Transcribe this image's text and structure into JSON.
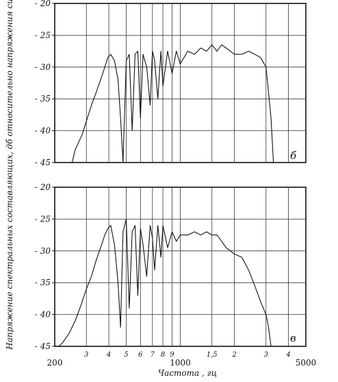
{
  "chart_data": {
    "type": "line",
    "ylabel": "Напряжение спектральных составляющих, дб относительно напряжения сигнала",
    "xlabel": "Частота , гц",
    "x_scale": "log",
    "xlim": [
      200,
      5000
    ],
    "x_tick_labels_major": [
      "200",
      "1000",
      "5000"
    ],
    "x_tick_labels_minor": [
      "3",
      "4",
      "5",
      "6",
      "7",
      "8",
      "9",
      "1,5",
      "2",
      "3",
      "4"
    ],
    "x_tick_values_minor": [
      300,
      400,
      500,
      600,
      700,
      800,
      900,
      1500,
      2000,
      3000,
      4000
    ],
    "y_tick_labels": [
      "- 20",
      "- 25",
      "- 30",
      "- 35",
      "- 40",
      "- 45"
    ],
    "panels": [
      {
        "label": "б",
        "ylim": [
          -45,
          -20
        ],
        "series": [
          {
            "x": [
              250,
              260,
              270,
              285,
              300,
              320,
              340,
              360,
              380,
              395,
              410,
              430,
              450,
              465,
              480,
              500,
              520,
              540,
              560,
              580,
              600,
              620,
              650,
              680,
              700,
              720,
              750,
              780,
              800,
              850,
              900,
              950,
              1000,
              1100,
              1200,
              1300,
              1400,
              1500,
              1600,
              1700,
              1800,
              1900,
              2000,
              2200,
              2400,
              2600,
              2800,
              3000,
              3100,
              3200,
              3300
            ],
            "y": [
              -45,
              -43,
              -42,
              -40.5,
              -38.5,
              -36,
              -34,
              -32,
              -30,
              -28.5,
              -28,
              -29,
              -32,
              -38,
              -45,
              -29,
              -28,
              -40,
              -28,
              -27.5,
              -38,
              -28,
              -30,
              -36,
              -27.5,
              -29,
              -35,
              -27.5,
              -33,
              -27.5,
              -31,
              -27.5,
              -29.5,
              -27.5,
              -28,
              -27,
              -27.5,
              -26.5,
              -27.5,
              -26.5,
              -27,
              -27.5,
              -28,
              -28,
              -27.5,
              -28,
              -28.5,
              -30,
              -34,
              -38,
              -45
            ]
          }
        ]
      },
      {
        "label": "в",
        "ylim": [
          -45,
          -20
        ],
        "series": [
          {
            "x": [
              210,
              220,
              240,
              260,
              280,
              300,
              320,
              340,
              360,
              380,
              395,
              410,
              430,
              450,
              465,
              480,
              500,
              520,
              540,
              560,
              580,
              600,
              620,
              650,
              680,
              700,
              720,
              750,
              780,
              800,
              850,
              900,
              950,
              1000,
              1100,
              1200,
              1300,
              1400,
              1500,
              1600,
              1700,
              1800,
              1900,
              2000,
              2200,
              2400,
              2600,
              2800,
              3000,
              3100,
              3200,
              3300
            ],
            "y": [
              -45,
              -44.5,
              -43,
              -41,
              -38.5,
              -36,
              -34,
              -31.5,
              -29.5,
              -27.5,
              -26.5,
              -26,
              -29,
              -35,
              -42,
              -27,
              -25,
              -39,
              -27,
              -26,
              -37,
              -26.5,
              -29,
              -34,
              -26,
              -28,
              -33,
              -26,
              -31,
              -26,
              -29.5,
              -27,
              -28.5,
              -27.5,
              -27.5,
              -27,
              -27.5,
              -27,
              -27.5,
              -27.5,
              -28.5,
              -29.5,
              -30,
              -30.5,
              -31,
              -33,
              -35.5,
              -38,
              -40,
              -42,
              -45,
              -45
            ]
          }
        ]
      }
    ]
  }
}
